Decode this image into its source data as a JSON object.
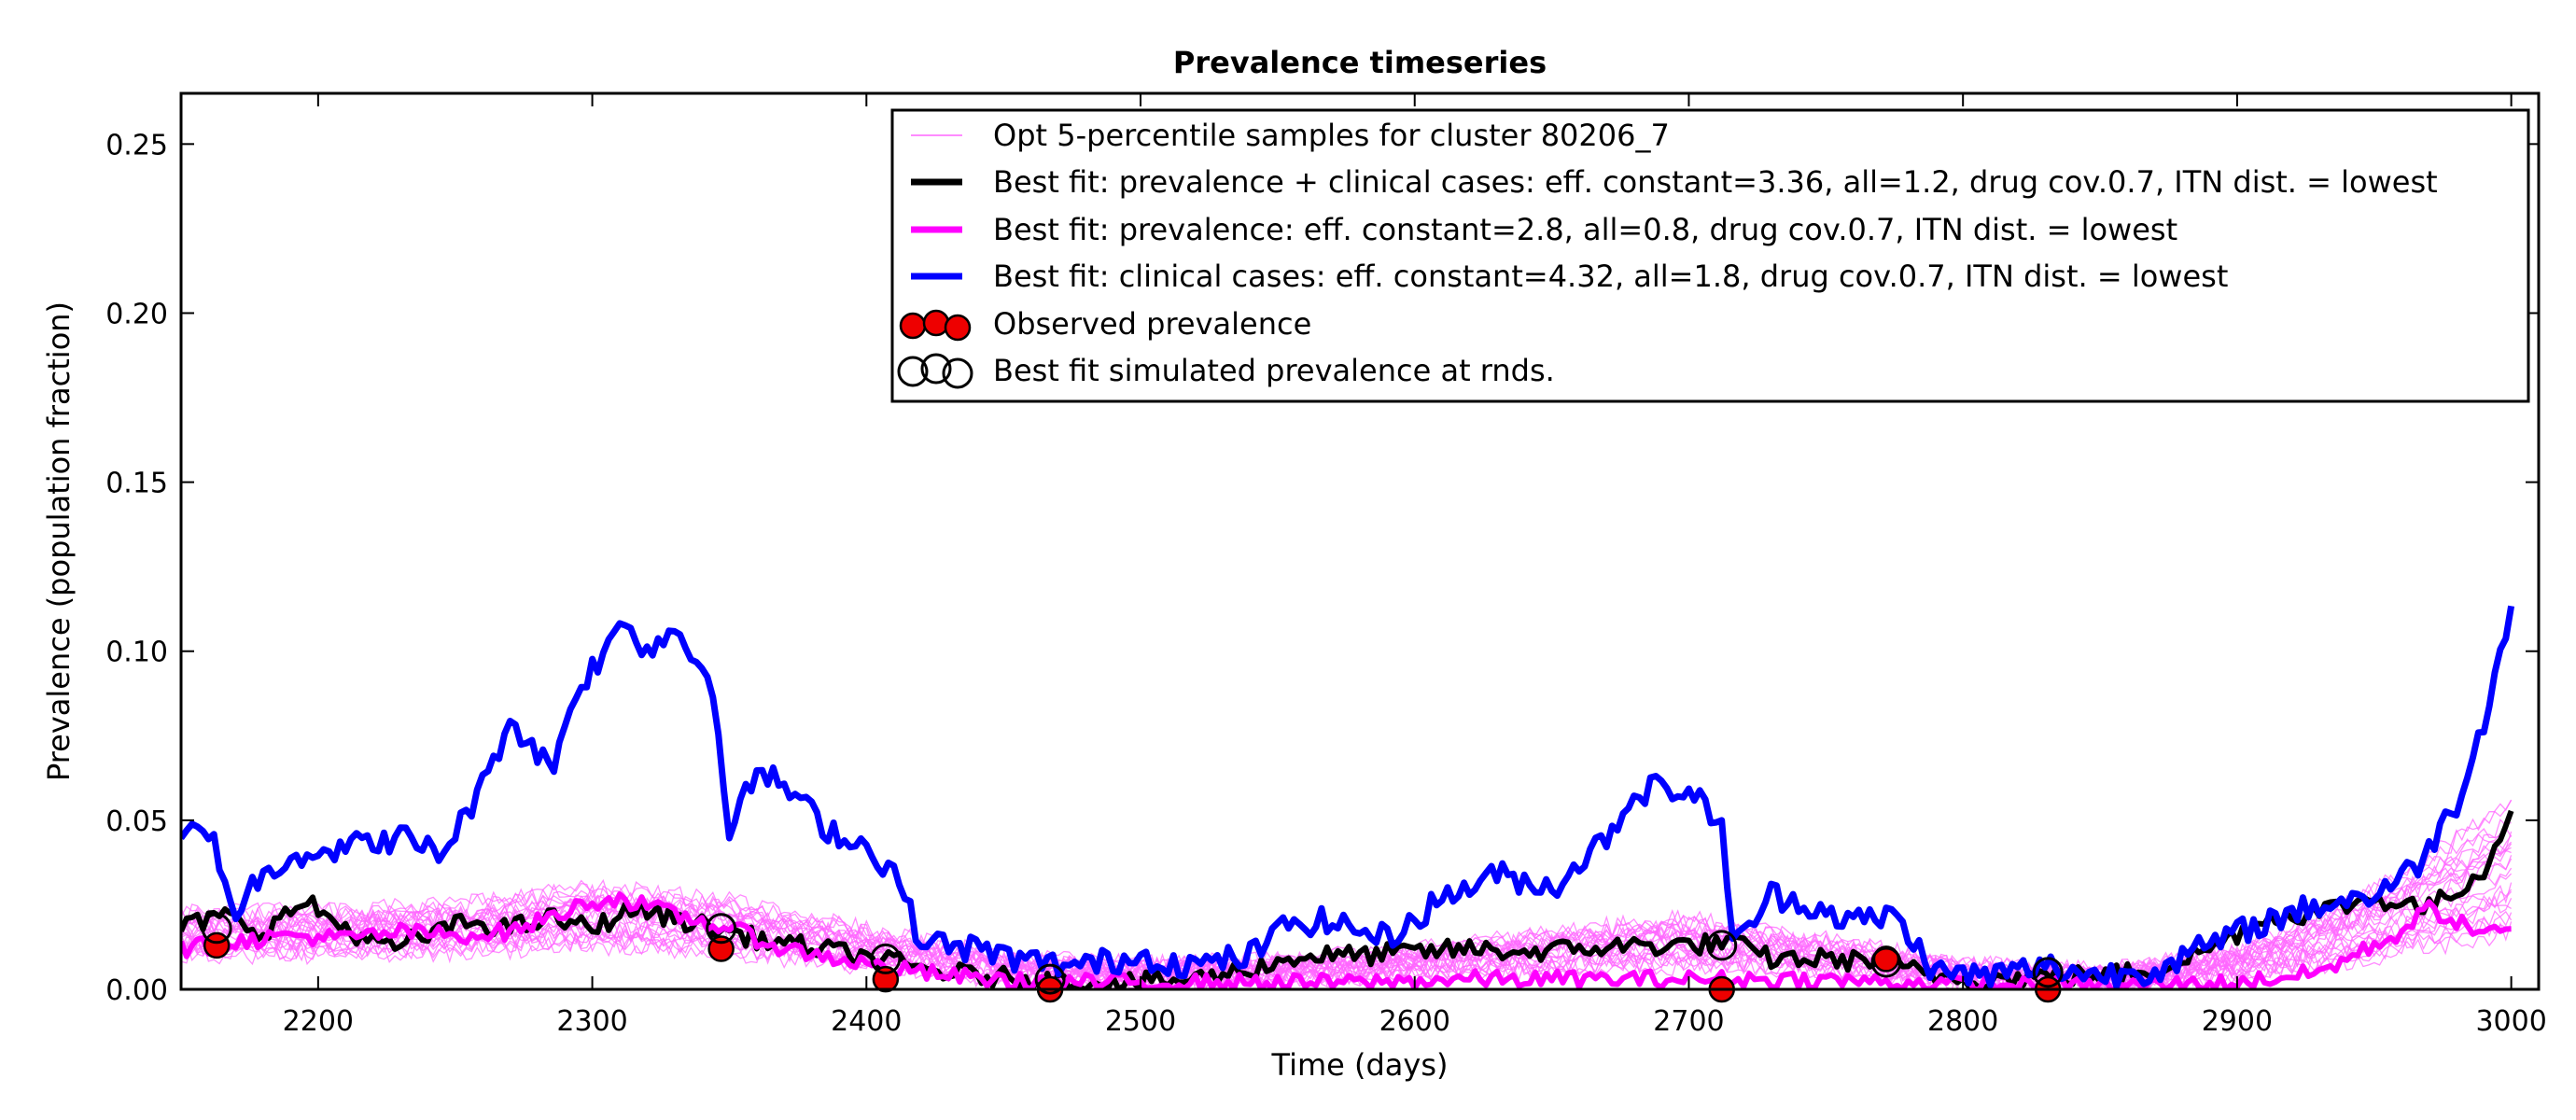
{
  "chart_data": {
    "type": "line",
    "title": "Prevalence timeseries",
    "xlabel": "Time (days)",
    "ylabel": "Prevalence (population fraction)",
    "xlim": [
      2150,
      3010
    ],
    "ylim": [
      0.0,
      0.265
    ],
    "xticks": [
      2200,
      2300,
      2400,
      2500,
      2600,
      2700,
      2800,
      2900,
      3000
    ],
    "yticks": [
      0.0,
      0.05,
      0.1,
      0.15,
      0.2,
      0.25
    ],
    "ytick_labels": [
      "0.00",
      "0.05",
      "0.10",
      "0.15",
      "0.20",
      "0.25"
    ],
    "grid": false,
    "legend_position": "top-right",
    "sample_series": {
      "name": "Opt 5-percentile samples for cluster 80206_7",
      "color": "#ff66ff",
      "count": 24,
      "x": [
        2150,
        2200,
        2250,
        2300,
        2350,
        2400,
        2450,
        2500,
        2550,
        2600,
        2650,
        2700,
        2750,
        2800,
        2850,
        2900,
        2950,
        3000
      ],
      "base": [
        0.012,
        0.012,
        0.013,
        0.015,
        0.013,
        0.008,
        0.004,
        0.003,
        0.004,
        0.005,
        0.007,
        0.009,
        0.006,
        0.003,
        0.002,
        0.005,
        0.012,
        0.022
      ],
      "spread": [
        0.01,
        0.01,
        0.011,
        0.014,
        0.012,
        0.009,
        0.005,
        0.004,
        0.004,
        0.006,
        0.009,
        0.011,
        0.008,
        0.004,
        0.003,
        0.006,
        0.016,
        0.03
      ]
    },
    "series": [
      {
        "name": "Best fit: prevalence + clinical cases: eff. constant=3.36, all=1.2, drug cov.0.7, ITN dist. = lowest",
        "color": "#000000",
        "width": 6,
        "x": [
          2150,
          2165,
          2180,
          2195,
          2210,
          2225,
          2240,
          2255,
          2270,
          2285,
          2300,
          2315,
          2330,
          2345,
          2360,
          2375,
          2390,
          2405,
          2420,
          2440,
          2460,
          2480,
          2500,
          2520,
          2540,
          2560,
          2580,
          2600,
          2620,
          2640,
          2660,
          2680,
          2700,
          2715,
          2730,
          2750,
          2770,
          2790,
          2810,
          2830,
          2850,
          2870,
          2890,
          2910,
          2930,
          2950,
          2970,
          2990,
          3000
        ],
        "y": [
          0.018,
          0.022,
          0.017,
          0.026,
          0.018,
          0.012,
          0.016,
          0.02,
          0.018,
          0.021,
          0.018,
          0.024,
          0.021,
          0.018,
          0.015,
          0.013,
          0.011,
          0.009,
          0.006,
          0.004,
          0.003,
          0.002,
          0.002,
          0.003,
          0.006,
          0.01,
          0.01,
          0.011,
          0.012,
          0.011,
          0.012,
          0.013,
          0.013,
          0.014,
          0.009,
          0.009,
          0.008,
          0.004,
          0.003,
          0.004,
          0.004,
          0.006,
          0.012,
          0.021,
          0.023,
          0.027,
          0.024,
          0.035,
          0.054
        ]
      },
      {
        "name": "Best fit: prevalence: eff. constant=2.8, all=0.8, drug cov.0.7, ITN dist. = lowest",
        "color": "#ff00ff",
        "width": 6,
        "x": [
          2150,
          2170,
          2190,
          2210,
          2230,
          2250,
          2270,
          2290,
          2300,
          2310,
          2330,
          2350,
          2370,
          2390,
          2410,
          2430,
          2460,
          2500,
          2540,
          2580,
          2620,
          2660,
          2700,
          2740,
          2780,
          2820,
          2860,
          2900,
          2930,
          2960,
          2970,
          2985,
          3000
        ],
        "y": [
          0.012,
          0.014,
          0.016,
          0.015,
          0.017,
          0.016,
          0.017,
          0.023,
          0.026,
          0.027,
          0.022,
          0.018,
          0.012,
          0.009,
          0.006,
          0.004,
          0.002,
          0.002,
          0.002,
          0.002,
          0.003,
          0.003,
          0.003,
          0.003,
          0.002,
          0.001,
          0.001,
          0.002,
          0.005,
          0.017,
          0.024,
          0.018,
          0.016
        ]
      },
      {
        "name": "Best fit: clinical cases: eff. constant=4.32, all=1.8, drug cov.0.7, ITN dist. = lowest",
        "color": "#0000ff",
        "width": 7,
        "x": [
          2150,
          2160,
          2170,
          2175,
          2190,
          2210,
          2230,
          2245,
          2260,
          2270,
          2285,
          2295,
          2305,
          2312,
          2320,
          2330,
          2340,
          2345,
          2350,
          2360,
          2370,
          2385,
          2400,
          2410,
          2420,
          2440,
          2460,
          2480,
          2500,
          2520,
          2540,
          2555,
          2570,
          2590,
          2610,
          2630,
          2650,
          2670,
          2680,
          2690,
          2700,
          2712,
          2716,
          2730,
          2745,
          2760,
          2775,
          2790,
          2810,
          2830,
          2850,
          2870,
          2890,
          2910,
          2930,
          2950,
          2965,
          2980,
          2990,
          3000
        ],
        "y": [
          0.045,
          0.048,
          0.022,
          0.03,
          0.04,
          0.042,
          0.045,
          0.04,
          0.06,
          0.08,
          0.065,
          0.09,
          0.1,
          0.11,
          0.1,
          0.107,
          0.095,
          0.088,
          0.045,
          0.065,
          0.06,
          0.048,
          0.042,
          0.035,
          0.014,
          0.012,
          0.008,
          0.007,
          0.01,
          0.007,
          0.01,
          0.02,
          0.02,
          0.015,
          0.027,
          0.034,
          0.03,
          0.045,
          0.058,
          0.06,
          0.058,
          0.05,
          0.012,
          0.028,
          0.025,
          0.02,
          0.022,
          0.005,
          0.004,
          0.007,
          0.004,
          0.006,
          0.013,
          0.02,
          0.025,
          0.028,
          0.036,
          0.055,
          0.08,
          0.112
        ]
      }
    ],
    "observed": {
      "name": "Observed prevalence",
      "color": "#ee0000",
      "x": [
        2163,
        2347,
        2407,
        2467,
        2712,
        2772,
        2831
      ],
      "y": [
        0.013,
        0.012,
        0.003,
        0.0,
        0.0,
        0.009,
        0.0
      ]
    },
    "simulated": {
      "name": "Best fit simulated prevalence at rnds.",
      "x": [
        2163,
        2347,
        2407,
        2467,
        2712,
        2772,
        2831
      ],
      "y": [
        0.018,
        0.018,
        0.009,
        0.003,
        0.013,
        0.008,
        0.005
      ]
    }
  }
}
